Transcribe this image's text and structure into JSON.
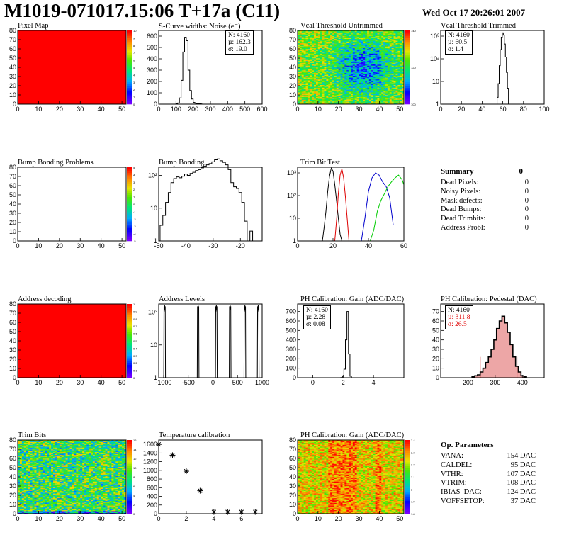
{
  "header": {
    "title": "M1019-071017.15:06 T+17a (C11)",
    "timestamp": "Wed Oct 17 20:26:01 2007"
  },
  "colors": {
    "map_red": "#ff0000",
    "trim_black": "#000000",
    "trim_red": "#dd0000",
    "trim_blue": "#0000cc",
    "trim_green": "#00cc00",
    "ped_fill": "#cc0000"
  },
  "summary": {
    "title": "Summary",
    "total": "0",
    "rows": [
      {
        "label": "Dead Pixels:",
        "value": "0"
      },
      {
        "label": "Noisy Pixels:",
        "value": "0"
      },
      {
        "label": "Mask defects:",
        "value": "0"
      },
      {
        "label": "Dead Bumps:",
        "value": "0"
      },
      {
        "label": "Dead Trimbits:",
        "value": "0"
      },
      {
        "label": "Address Probl:",
        "value": "0"
      }
    ]
  },
  "op_params": {
    "title": "Op. Parameters",
    "rows": [
      {
        "label": "VANA:",
        "value": "154 DAC"
      },
      {
        "label": "CALDEL:",
        "value": "95 DAC"
      },
      {
        "label": "VTHR:",
        "value": "107 DAC"
      },
      {
        "label": "VTRIM:",
        "value": "108 DAC"
      },
      {
        "label": "IBIAS_DAC:",
        "value": "124 DAC"
      },
      {
        "label": "VOFFSETOP:",
        "value": "37 DAC"
      }
    ]
  },
  "chart_data": [
    {
      "id": "pixel_map",
      "type": "heatmap",
      "title": "Pixel Map",
      "xlim": [
        0,
        52
      ],
      "ylim": [
        0,
        80
      ],
      "xticks": [
        "0",
        "10",
        "20",
        "30",
        "40",
        "50"
      ],
      "yticks": [
        "0",
        "10",
        "20",
        "30",
        "40",
        "50",
        "60",
        "70",
        "80"
      ],
      "zlim": [
        0,
        10
      ],
      "zticks": [
        "0",
        "1",
        "2",
        "3",
        "4",
        "5",
        "6",
        "7",
        "8",
        "9",
        "10"
      ],
      "fill": "uniform-max"
    },
    {
      "id": "noise",
      "type": "bar",
      "title": "S-Curve widths: Noise (e⁻)",
      "xlim": [
        0,
        600
      ],
      "ylim": [
        0,
        650
      ],
      "xticks": [
        "0",
        "100",
        "200",
        "300",
        "400",
        "500",
        "600"
      ],
      "yticks": [
        "0",
        "100",
        "200",
        "300",
        "400",
        "500",
        "600"
      ],
      "stats": [
        "N: 4160",
        "µ: 162.3",
        "σ: 19.0"
      ],
      "x": [
        105,
        115,
        125,
        135,
        145,
        155,
        165,
        175,
        185,
        195,
        205,
        215,
        225,
        235,
        245
      ],
      "values": [
        3,
        10,
        55,
        210,
        460,
        590,
        560,
        300,
        120,
        45,
        15,
        8,
        5,
        3,
        2
      ]
    },
    {
      "id": "vcal_untrimmed",
      "type": "heatmap",
      "title": "Vcal Threshold Untrimmed",
      "xlim": [
        0,
        52
      ],
      "ylim": [
        0,
        80
      ],
      "xticks": [
        "0",
        "10",
        "20",
        "30",
        "40",
        "50"
      ],
      "yticks": [
        "0",
        "10",
        "20",
        "30",
        "40",
        "50",
        "60",
        "70",
        "80"
      ],
      "zticks": [
        "100",
        "120",
        "140"
      ],
      "fill": "noise-center-low"
    },
    {
      "id": "vcal_trimmed",
      "type": "bar",
      "title": "Vcal Threshold Trimmed",
      "xlim": [
        0,
        100
      ],
      "log": true,
      "xticks": [
        "0",
        "20",
        "40",
        "60",
        "80",
        "100"
      ],
      "yticks": [
        "1",
        "10",
        "10²",
        "10³"
      ],
      "stats": [
        "N: 4160",
        "µ: 60.5",
        "σ: 1.4"
      ],
      "x": [
        55,
        56,
        57,
        58,
        59,
        60,
        61,
        62,
        63,
        64,
        65,
        66
      ],
      "values": [
        2,
        8,
        50,
        250,
        900,
        1400,
        1100,
        450,
        120,
        25,
        5,
        1
      ]
    },
    {
      "id": "bump_problems",
      "type": "heatmap",
      "title": "Bump Bonding Problems",
      "xlim": [
        0,
        52
      ],
      "ylim": [
        0,
        80
      ],
      "xticks": [
        "0",
        "10",
        "20",
        "30",
        "40",
        "50"
      ],
      "yticks": [
        "0",
        "10",
        "20",
        "30",
        "40",
        "50",
        "60",
        "70",
        "80"
      ],
      "zticks": [
        "-5",
        "-4",
        "-3",
        "-2",
        "-1",
        "0",
        "1",
        "2",
        "3",
        "4",
        "5"
      ],
      "fill": "empty"
    },
    {
      "id": "bump_bonding",
      "type": "bar",
      "title": "Bump Bonding",
      "xlim": [
        -50,
        -12
      ],
      "log": true,
      "xticks": [
        "-50",
        "-40",
        "-30",
        "-20"
      ],
      "yticks": [
        "1",
        "10",
        "10²"
      ],
      "x": [
        -49,
        -48,
        -47,
        -46,
        -45,
        -44,
        -43,
        -42,
        -41,
        -40,
        -39,
        -38,
        -37,
        -36,
        -35,
        -34,
        -33,
        -32,
        -31,
        -30,
        -29,
        -28,
        -27,
        -26,
        -25,
        -24,
        -23,
        -22,
        -21,
        -20,
        -19,
        -18,
        -17,
        -16
      ],
      "values": [
        3,
        6,
        15,
        30,
        60,
        80,
        90,
        85,
        95,
        110,
        100,
        115,
        125,
        140,
        150,
        170,
        190,
        210,
        230,
        260,
        300,
        320,
        280,
        250,
        210,
        150,
        60,
        45,
        40,
        30,
        15,
        4,
        1,
        2
      ]
    },
    {
      "id": "trim_bit_test",
      "type": "line",
      "title": "Trim Bit Test",
      "xlim": [
        0,
        60
      ],
      "log": true,
      "xticks": [
        "0",
        "20",
        "40",
        "60"
      ],
      "yticks": [
        "1",
        "10",
        "10²",
        "10³"
      ],
      "series": [
        {
          "color": "#000000",
          "x": [
            14,
            15,
            16,
            17,
            18,
            19,
            20,
            21,
            22,
            23,
            24,
            25
          ],
          "values": [
            1,
            4,
            20,
            150,
            700,
            1600,
            1200,
            300,
            60,
            10,
            2,
            1
          ]
        },
        {
          "color": "#dd0000",
          "x": [
            21,
            22,
            23,
            24,
            25,
            26,
            27,
            28,
            29
          ],
          "values": [
            1,
            8,
            120,
            800,
            1500,
            600,
            90,
            10,
            1
          ]
        },
        {
          "color": "#0000cc",
          "x": [
            36,
            38,
            40,
            42,
            44,
            46,
            48,
            50,
            52,
            54
          ],
          "values": [
            1,
            10,
            150,
            600,
            1000,
            800,
            400,
            250,
            80,
            5
          ]
        },
        {
          "color": "#00cc00",
          "x": [
            41,
            43,
            45,
            47,
            49,
            51,
            53,
            55,
            57,
            59,
            60
          ],
          "values": [
            1,
            3,
            20,
            60,
            120,
            250,
            400,
            600,
            800,
            500,
            300
          ]
        }
      ]
    },
    {
      "id": "address_decoding",
      "type": "heatmap",
      "title": "Address decoding",
      "xlim": [
        0,
        52
      ],
      "ylim": [
        0,
        80
      ],
      "xticks": [
        "0",
        "10",
        "20",
        "30",
        "40",
        "50"
      ],
      "yticks": [
        "0",
        "10",
        "20",
        "30",
        "40",
        "50",
        "60",
        "70",
        "80"
      ],
      "zticks": [
        "0",
        "0.1",
        "0.2",
        "0.3",
        "0.4",
        "0.5",
        "0.6",
        "0.7",
        "0.8",
        "0.9",
        "1"
      ],
      "fill": "uniform-max"
    },
    {
      "id": "address_levels",
      "type": "bar",
      "title": "Address Levels",
      "xlim": [
        -1100,
        1000
      ],
      "log": true,
      "xticks": [
        "-1000",
        "-500",
        "0",
        "500",
        "1000"
      ],
      "yticks": [
        "1",
        "10",
        "10²"
      ],
      "peaks": [
        -980,
        -300,
        70,
        350,
        650,
        920
      ],
      "peak_height": 150
    },
    {
      "id": "ph_gain",
      "type": "bar",
      "title": "PH Calibration: Gain (ADC/DAC)",
      "xlim": [
        -1,
        6
      ],
      "ylim": [
        0,
        780
      ],
      "xticks": [
        "0",
        "2",
        "4"
      ],
      "yticks": [
        "0",
        "100",
        "200",
        "300",
        "400",
        "500",
        "600",
        "700"
      ],
      "stats": [
        "N: 4160",
        "µ: 2.28",
        "σ: 0.08"
      ],
      "x": [
        1.9,
        2.0,
        2.1,
        2.2,
        2.3,
        2.4,
        2.5
      ],
      "values": [
        2,
        15,
        90,
        400,
        700,
        250,
        15
      ]
    },
    {
      "id": "ph_pedestal",
      "type": "bar",
      "title": "PH Calibration: Pedestal (DAC)",
      "xlim": [
        100,
        480
      ],
      "ylim": [
        0,
        78
      ],
      "xticks": [
        "200",
        "300",
        "400"
      ],
      "yticks": [
        "0",
        "10",
        "20",
        "30",
        "40",
        "50",
        "60",
        "70"
      ],
      "stats": [
        "N: 4160",
        "µ: 311.8",
        "σ: 26.5"
      ],
      "x": [
        220,
        230,
        240,
        250,
        260,
        270,
        280,
        290,
        300,
        310,
        320,
        330,
        340,
        350,
        360,
        370,
        380,
        390,
        400,
        410
      ],
      "values": [
        1,
        2,
        3,
        6,
        10,
        16,
        22,
        30,
        40,
        52,
        60,
        65,
        58,
        48,
        35,
        22,
        12,
        6,
        2,
        1
      ]
    },
    {
      "id": "trim_bits",
      "type": "heatmap",
      "title": "Trim Bits",
      "xlim": [
        0,
        52
      ],
      "ylim": [
        0,
        80
      ],
      "xticks": [
        "0",
        "10",
        "20",
        "30",
        "40",
        "50"
      ],
      "yticks": [
        "0",
        "10",
        "20",
        "30",
        "40",
        "50",
        "60",
        "70",
        "80"
      ],
      "zticks": [
        "0",
        "2",
        "4",
        "6",
        "8",
        "10",
        "12",
        "14",
        "16"
      ],
      "fill": "noise-mid"
    },
    {
      "id": "temp_calibration",
      "type": "scatter",
      "title": "Temperature calibration",
      "xlim": [
        0,
        7.5
      ],
      "ylim": [
        0,
        1700
      ],
      "xticks": [
        "0",
        "2",
        "4",
        "6"
      ],
      "yticks": [
        "0",
        "200",
        "400",
        "600",
        "800",
        "1000",
        "1200",
        "1400",
        "1600"
      ],
      "x": [
        0,
        1,
        2,
        3,
        4,
        5,
        6,
        7
      ],
      "values": [
        1600,
        1350,
        980,
        530,
        40,
        40,
        40,
        40
      ]
    },
    {
      "id": "ph_gain_map",
      "type": "heatmap",
      "title": "PH Calibration: Gain (ADC/DAC)",
      "xlim": [
        0,
        52
      ],
      "ylim": [
        0,
        80
      ],
      "xticks": [
        "0",
        "10",
        "20",
        "30",
        "40",
        "50"
      ],
      "yticks": [
        "0",
        "10",
        "20",
        "30",
        "40",
        "50",
        "60",
        "70",
        "80"
      ],
      "zticks": [
        "1.8",
        "1.9",
        "2",
        "2.1",
        "2.2",
        "2.3",
        "2.4"
      ],
      "fill": "noise-gain"
    }
  ]
}
